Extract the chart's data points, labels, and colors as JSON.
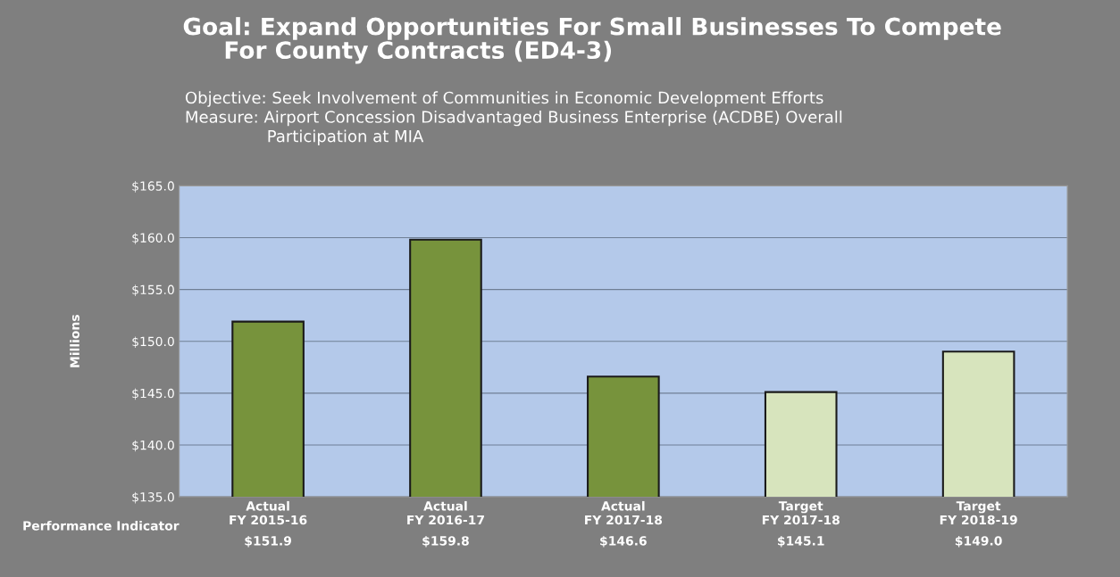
{
  "chart_data": {
    "type": "bar",
    "title": "Goal: Expand Opportunities For Small Businesses To Compete\n     For County Contracts (ED4-3)",
    "subtitle": "Objective: Seek Involvement of Communities in Economic Development Efforts\nMeasure: Airport Concession Disadvantaged Business Enterprise (ACDBE) Overall\n                Participation at MIA",
    "ylabel": "Millions",
    "categories": [
      "Actual\nFY 2015-16",
      "Actual\nFY 2016-17",
      "Actual\nFY 2017-18",
      "Target\nFY 2017-18",
      "Target\nFY 2018-19"
    ],
    "values": [
      151.9,
      159.8,
      146.6,
      145.1,
      149.0
    ],
    "value_labels": [
      "$151.9",
      "$159.8",
      "$146.6",
      "$145.1",
      "$149.0"
    ],
    "colors": [
      "#77933c",
      "#77933c",
      "#77933c",
      "#d7e4bd",
      "#d7e4bd"
    ],
    "annotations": [
      "Performance Indicator"
    ],
    "ylim": [
      135,
      165
    ],
    "yticks": [
      {
        "value": 135,
        "label": "$135.0"
      },
      {
        "value": 140,
        "label": "$140.0"
      },
      {
        "value": 145,
        "label": "$145.0"
      },
      {
        "value": 150,
        "label": "$150.0"
      },
      {
        "value": 155,
        "label": "$155.0"
      },
      {
        "value": 160,
        "label": "$160.0"
      },
      {
        "value": 165,
        "label": "$165.0"
      }
    ],
    "grid": "y",
    "legend": false
  }
}
